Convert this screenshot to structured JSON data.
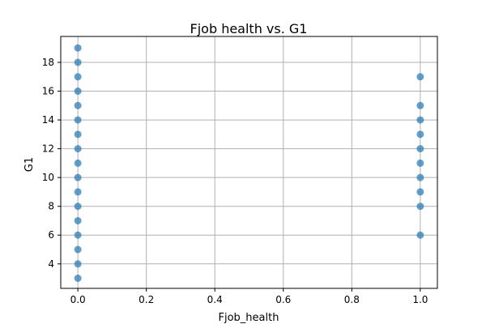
{
  "chart_data": {
    "type": "scatter",
    "title": "Fjob health vs. G1",
    "xlabel": "Fjob_health",
    "ylabel": "G1",
    "xlim": [
      -0.05,
      1.05
    ],
    "ylim": [
      2.3,
      19.8
    ],
    "xticks": [
      0.0,
      0.2,
      0.4,
      0.6,
      0.8,
      1.0
    ],
    "xtick_labels": [
      "0.0",
      "0.2",
      "0.4",
      "0.6",
      "0.8",
      "1.0"
    ],
    "yticks": [
      4,
      6,
      8,
      10,
      12,
      14,
      16,
      18
    ],
    "ytick_labels": [
      "4",
      "6",
      "8",
      "10",
      "12",
      "14",
      "16",
      "18"
    ],
    "grid": true,
    "color": "#1f77b4",
    "points": [
      {
        "x": 0,
        "y": 3
      },
      {
        "x": 0,
        "y": 4
      },
      {
        "x": 0,
        "y": 5
      },
      {
        "x": 0,
        "y": 6
      },
      {
        "x": 0,
        "y": 7
      },
      {
        "x": 0,
        "y": 8
      },
      {
        "x": 0,
        "y": 9
      },
      {
        "x": 0,
        "y": 10
      },
      {
        "x": 0,
        "y": 11
      },
      {
        "x": 0,
        "y": 12
      },
      {
        "x": 0,
        "y": 13
      },
      {
        "x": 0,
        "y": 14
      },
      {
        "x": 0,
        "y": 15
      },
      {
        "x": 0,
        "y": 16
      },
      {
        "x": 0,
        "y": 17
      },
      {
        "x": 0,
        "y": 18
      },
      {
        "x": 0,
        "y": 19
      },
      {
        "x": 1,
        "y": 6
      },
      {
        "x": 1,
        "y": 8
      },
      {
        "x": 1,
        "y": 9
      },
      {
        "x": 1,
        "y": 10
      },
      {
        "x": 1,
        "y": 11
      },
      {
        "x": 1,
        "y": 12
      },
      {
        "x": 1,
        "y": 13
      },
      {
        "x": 1,
        "y": 14
      },
      {
        "x": 1,
        "y": 15
      },
      {
        "x": 1,
        "y": 17
      }
    ]
  }
}
